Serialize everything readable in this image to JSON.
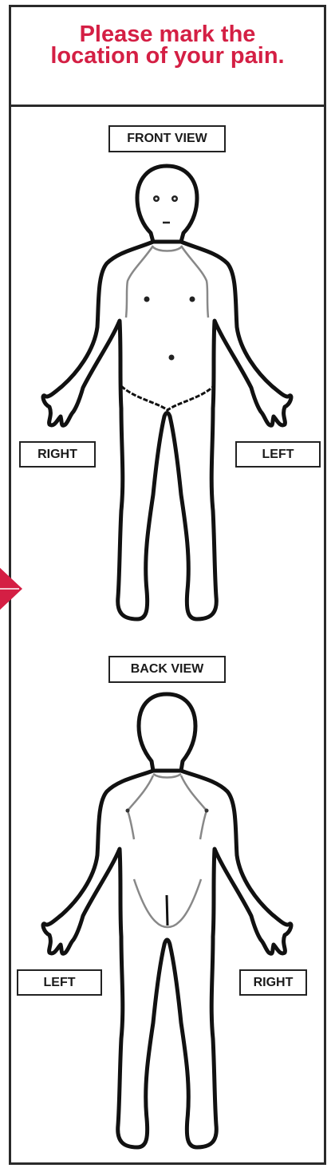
{
  "header": {
    "title_line1": "Please mark the",
    "title_line2": "location of your pain."
  },
  "front": {
    "view_label": "FRONT VIEW",
    "side_left_label": "RIGHT",
    "side_right_label": "LEFT"
  },
  "back": {
    "view_label": "BACK VIEW",
    "side_left_label": "LEFT",
    "side_right_label": "RIGHT"
  },
  "colors": {
    "accent": "#d41f44",
    "outline": "#111111",
    "frame": "#2a2a2a"
  },
  "icons": {
    "front_figure": "body-front-icon",
    "back_figure": "body-back-icon",
    "side_marker": "red-diamond-marker-icon"
  }
}
